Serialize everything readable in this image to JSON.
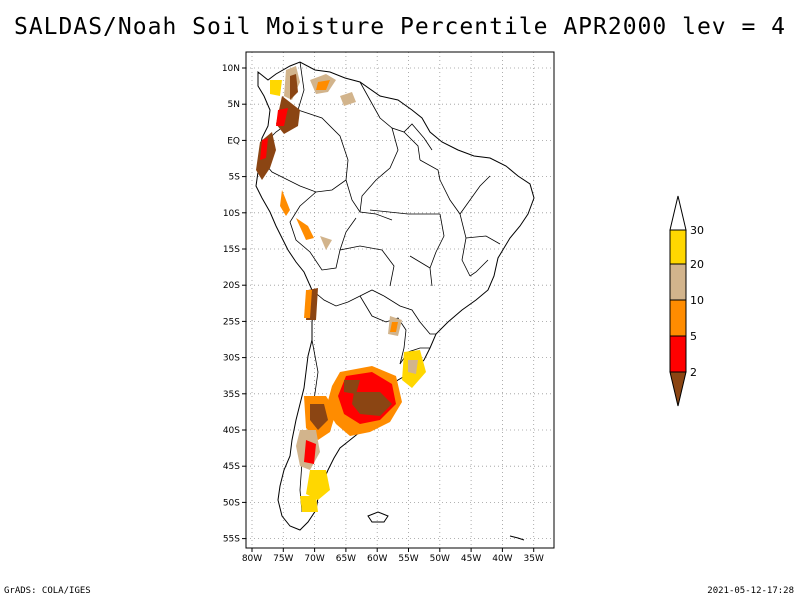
{
  "title": "SALDAS/Noah Soil Moisture Percentile APR2000 lev = 4",
  "footer_left": "GrADS: COLA/IGES",
  "footer_right": "2021-05-12-17:28",
  "map": {
    "lat_labels": [
      "10N",
      "5N",
      "EQ",
      "5S",
      "10S",
      "15S",
      "20S",
      "25S",
      "30S",
      "35S",
      "40S",
      "45S",
      "50S",
      "55S"
    ],
    "lon_labels": [
      "80W",
      "75W",
      "70W",
      "65W",
      "60W",
      "55W",
      "50W",
      "45W",
      "40W",
      "35W"
    ],
    "grid": "dotted",
    "region": "South America"
  },
  "legend": {
    "labels": [
      "2",
      "5",
      "10",
      "20",
      "30"
    ],
    "colors": {
      "below_2": "#8b4513",
      "2_5": "#ff0000",
      "5_10": "#ff8c00",
      "10_20": "#d2b48c",
      "20_30": "#ffd700",
      "above_30": "#ffffff"
    }
  }
}
